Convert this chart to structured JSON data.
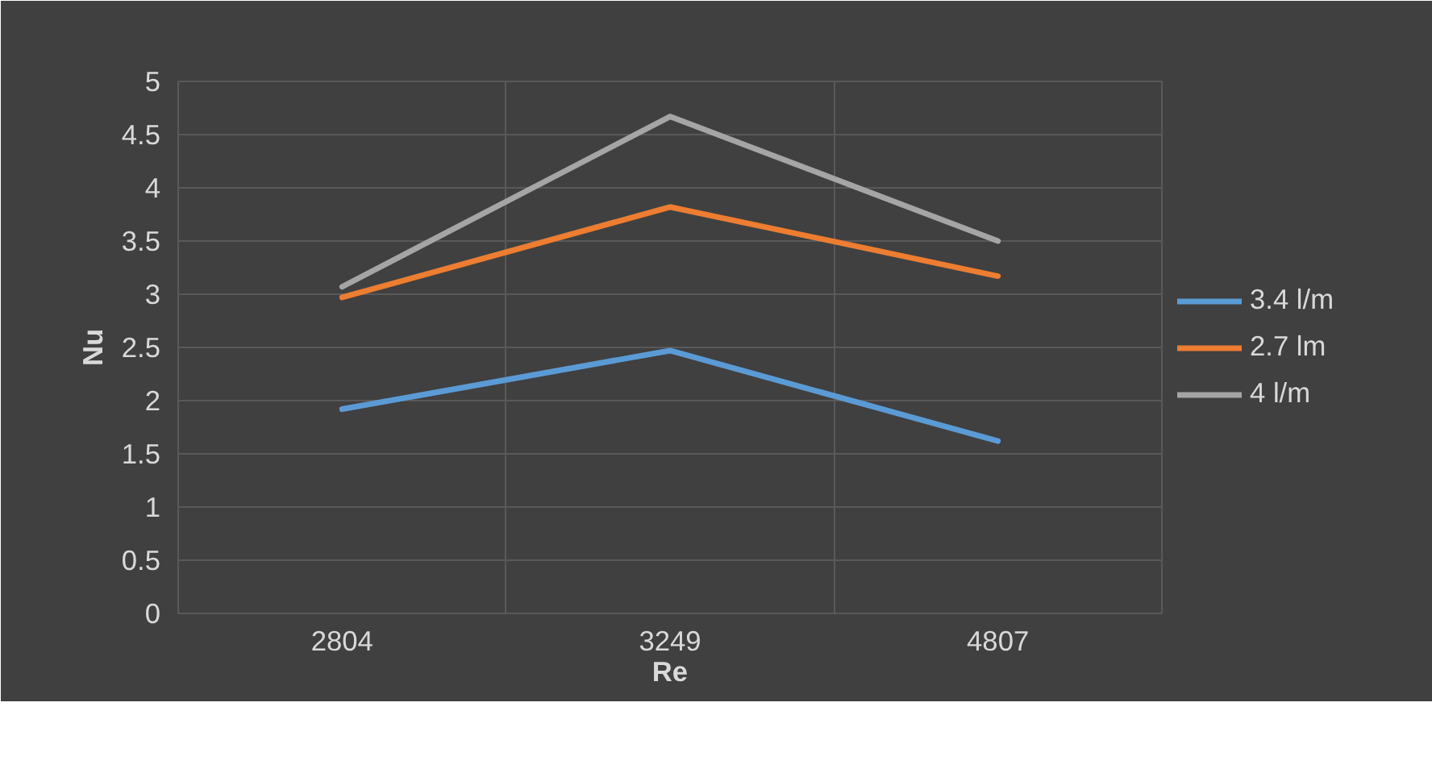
{
  "chart_data": {
    "type": "line",
    "xlabel": "Re",
    "ylabel": "Nu",
    "categories": [
      "2804",
      "3249",
      "4807"
    ],
    "series": [
      {
        "name": "3.4 l/m",
        "color": "#5b9bd5",
        "values": [
          1.92,
          2.47,
          1.62
        ]
      },
      {
        "name": "2.7 lm",
        "color": "#ed7d31",
        "values": [
          2.97,
          3.82,
          3.17
        ]
      },
      {
        "name": "4 l/m",
        "color": "#a5a5a5",
        "values": [
          3.07,
          4.67,
          3.5
        ]
      }
    ],
    "ylim": [
      0,
      5
    ],
    "yticks": [
      0,
      0.5,
      1,
      1.5,
      2,
      2.5,
      3,
      3.5,
      4,
      4.5,
      5
    ],
    "grid": true,
    "legend": "right",
    "marker": "none",
    "line_style": "solid"
  }
}
